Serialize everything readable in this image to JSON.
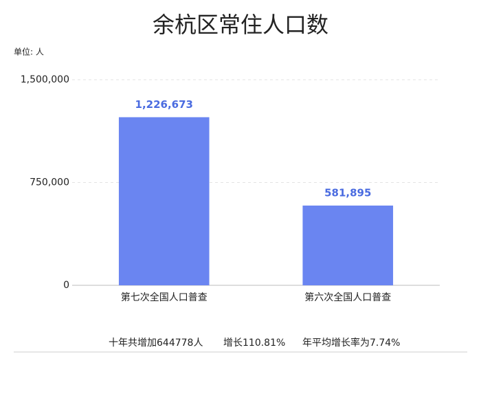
{
  "chart_data": {
    "type": "bar",
    "title": "余杭区常住人口数",
    "unit_label": "单位: 人",
    "categories": [
      "第七次全国人口普查",
      "第六次全国人口普查"
    ],
    "values": [
      1226673,
      581895
    ],
    "value_labels": [
      "1,226,673",
      "581,895"
    ],
    "color": "#6a85f1",
    "label_color": "#4a6be0",
    "ylim": [
      0,
      1500000
    ],
    "yticks": [
      0,
      {
        "value": 750000,
        "label": "750,000"
      },
      {
        "value": 1500000,
        "label": "1,500,000"
      }
    ],
    "grid": true,
    "annotations": [
      "十年共增加644778人",
      "增长110.81%",
      "年平均增长率为7.74%"
    ]
  }
}
